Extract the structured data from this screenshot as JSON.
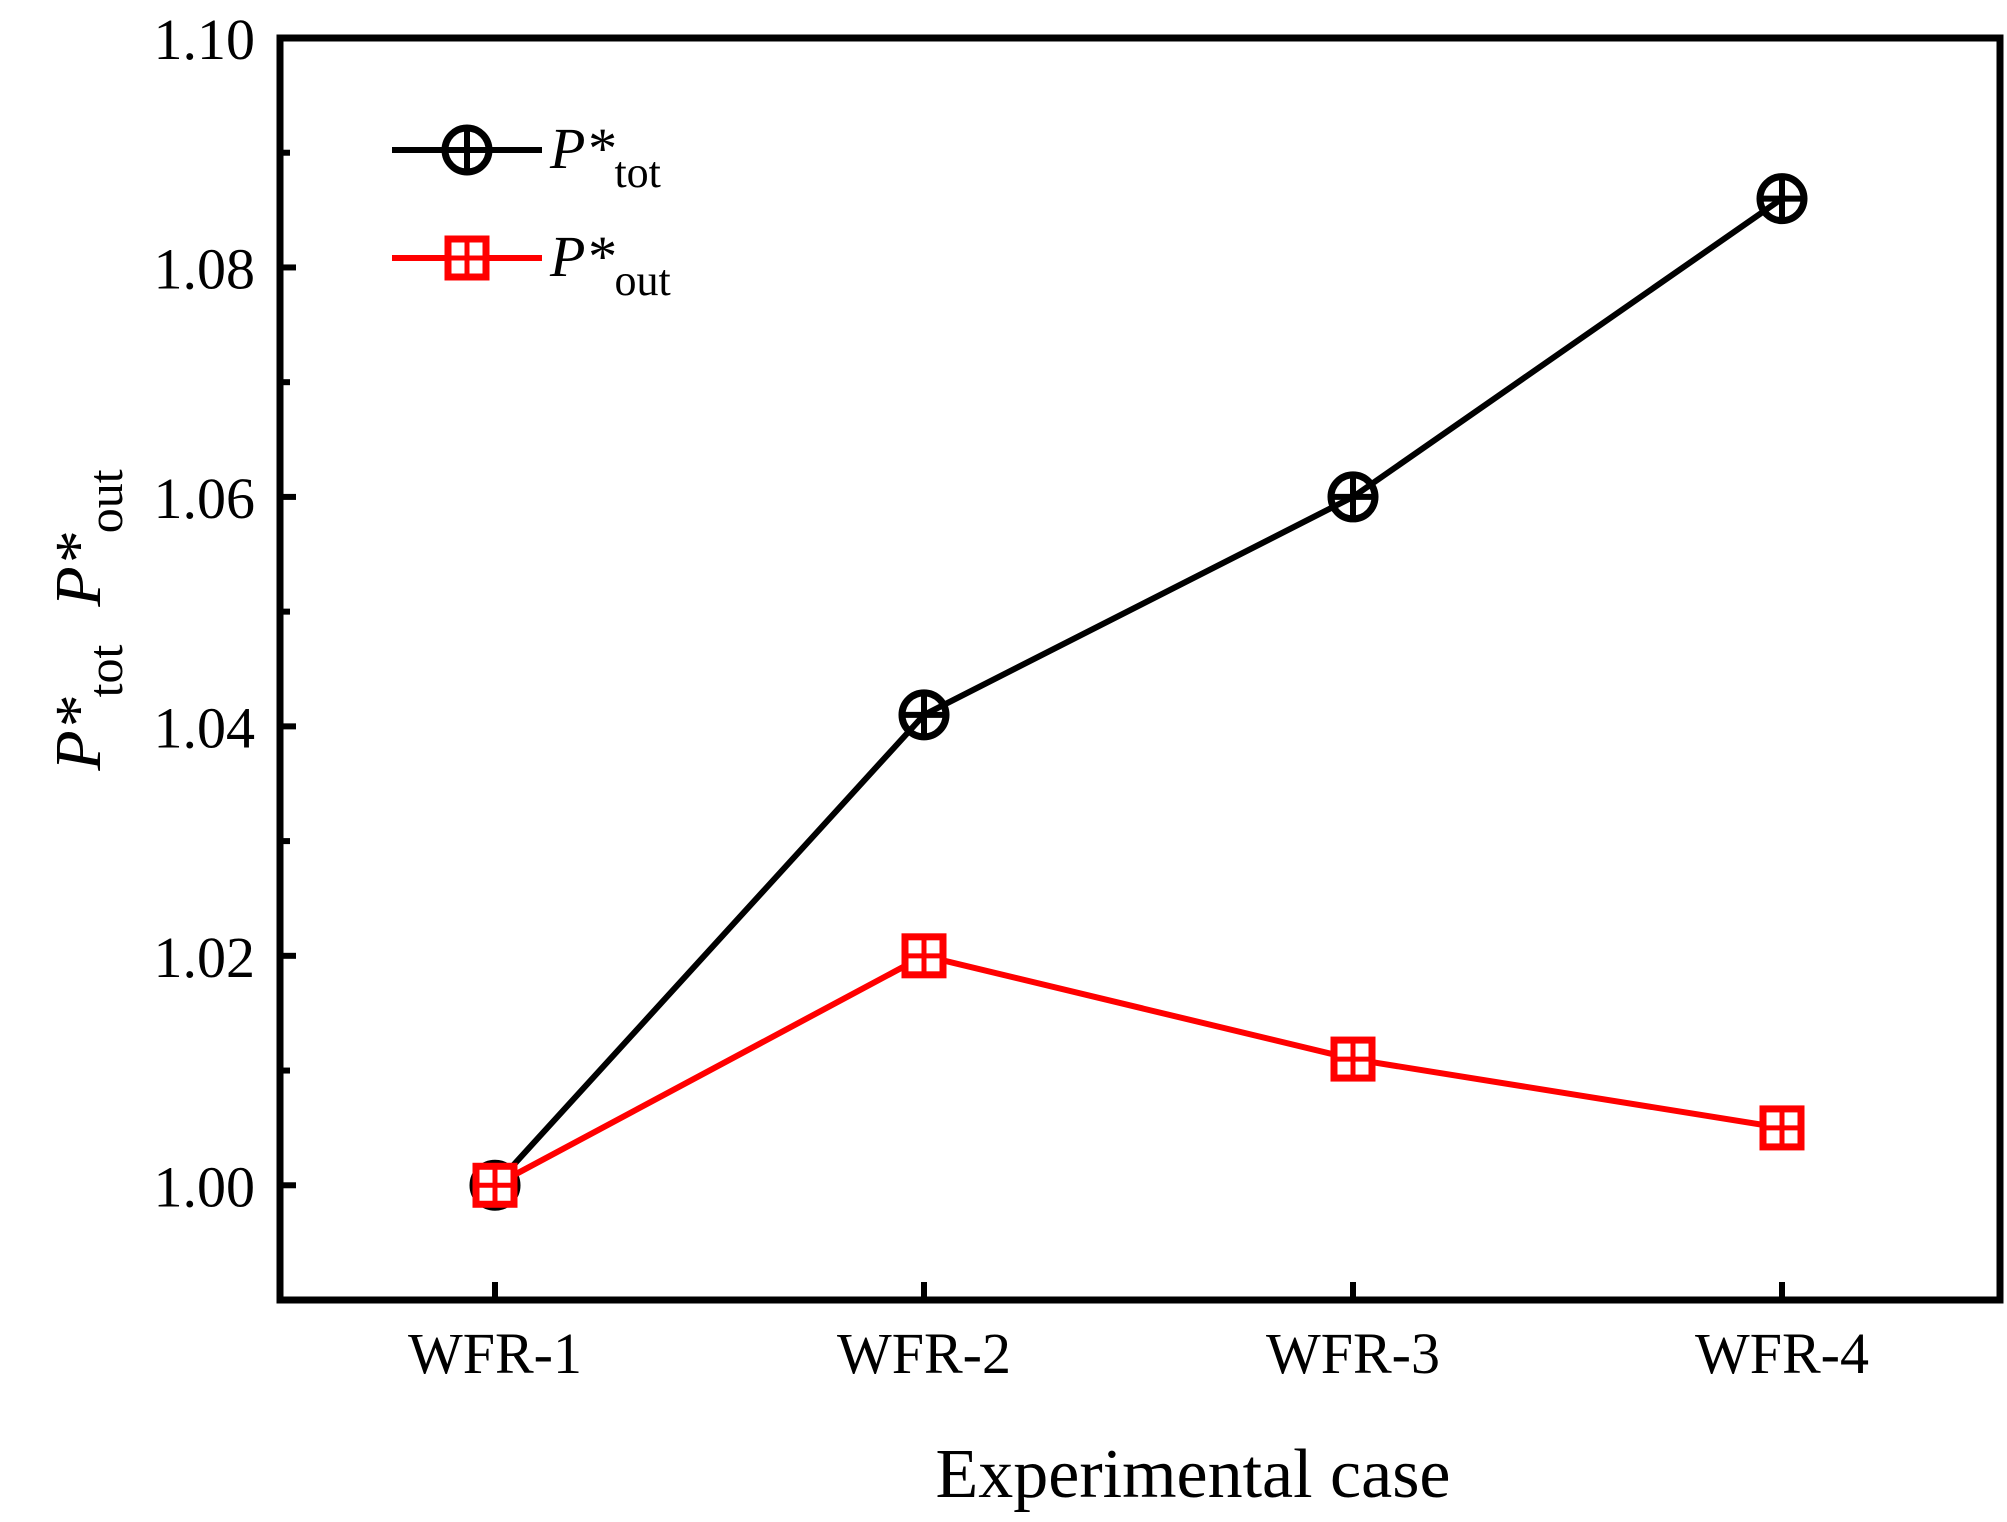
{
  "chart_data": {
    "type": "line",
    "categories": [
      "WFR-1",
      "WFR-2",
      "WFR-3",
      "WFR-4"
    ],
    "series": [
      {
        "name": "P*tot",
        "symbol": "P*",
        "subscript": "tot",
        "color": "#000000",
        "marker": "circle-plus",
        "values": [
          1.0,
          1.041,
          1.06,
          1.086
        ]
      },
      {
        "name": "P*out",
        "symbol": "P*",
        "subscript": "out",
        "color": "#ff0000",
        "marker": "square-plus",
        "values": [
          1.0,
          1.02,
          1.011,
          1.005
        ]
      }
    ],
    "xlabel": "Experimental case",
    "ylabel": {
      "parts": [
        {
          "symbol": "P*",
          "subscript": "tot"
        },
        {
          "symbol": "P*",
          "subscript": "out"
        }
      ]
    },
    "ylim": [
      0.99,
      1.1
    ],
    "yticks": [
      "1.00",
      "1.02",
      "1.04",
      "1.06",
      "1.08",
      "1.10"
    ],
    "grid": false,
    "legend_position": "top-left"
  }
}
